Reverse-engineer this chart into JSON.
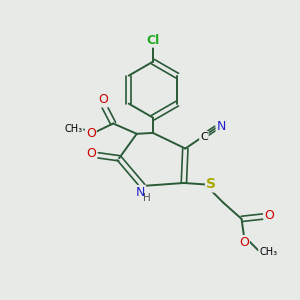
{
  "bg_color": "#e8eae8",
  "atom_colors": {
    "C": "#000000",
    "N": "#2222cc",
    "O": "#cc0000",
    "S": "#aaaa00",
    "Cl": "#22aa22",
    "H": "#555555"
  },
  "bond_color": "#2a5a38",
  "lw_single": 1.4,
  "lw_double": 1.2,
  "font_size_atom": 9,
  "font_size_small": 7.5
}
